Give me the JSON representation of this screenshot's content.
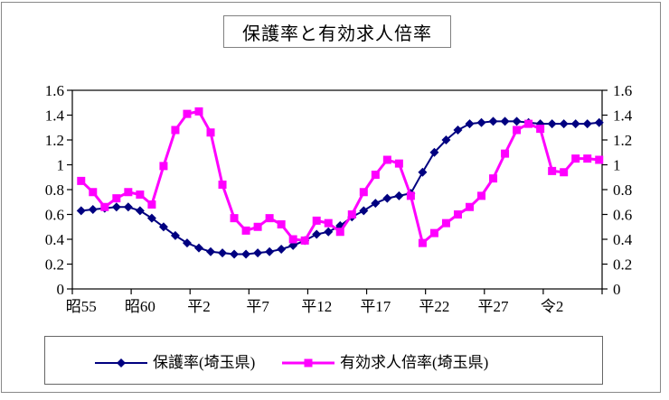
{
  "title": "保護率と有効求人倍率",
  "frame_color": "#888888",
  "axis_color": "#000000",
  "background": "#ffffff",
  "chart_data": {
    "type": "line",
    "title": "保護率と有効求人倍率",
    "x_tick_labels": [
      "昭55",
      "昭60",
      "平2",
      "平7",
      "平12",
      "平17",
      "平22",
      "平27",
      "令2"
    ],
    "x_label_interval": 5,
    "y_tick_labels": [
      "0",
      "0.2",
      "0.4",
      "0.6",
      "0.8",
      "1",
      "1.2",
      "1.4",
      "1.6"
    ],
    "ylim": [
      0,
      1.6
    ],
    "grid": false,
    "dual_y_axis": true,
    "legend_position": "bottom",
    "series": [
      {
        "name": "保護率(埼玉県)",
        "color": "#000080",
        "marker": "diamond",
        "line_width": 2,
        "values": [
          0.63,
          0.64,
          0.65,
          0.66,
          0.66,
          0.63,
          0.57,
          0.5,
          0.43,
          0.37,
          0.33,
          0.3,
          0.29,
          0.28,
          0.28,
          0.29,
          0.3,
          0.32,
          0.35,
          0.39,
          0.44,
          0.46,
          0.51,
          0.58,
          0.63,
          0.69,
          0.73,
          0.75,
          0.77,
          0.94,
          1.1,
          1.2,
          1.28,
          1.33,
          1.34,
          1.35,
          1.35,
          1.35,
          1.34,
          1.33,
          1.33,
          1.33,
          1.33,
          1.33,
          1.34
        ]
      },
      {
        "name": "有効求人倍率(埼玉県)",
        "color": "#FF00FF",
        "marker": "square",
        "line_width": 3,
        "values": [
          0.87,
          0.78,
          0.66,
          0.73,
          0.78,
          0.76,
          0.68,
          0.99,
          1.28,
          1.41,
          1.43,
          1.26,
          0.84,
          0.57,
          0.47,
          0.5,
          0.57,
          0.52,
          0.4,
          0.39,
          0.55,
          0.53,
          0.46,
          0.6,
          0.78,
          0.92,
          1.04,
          1.01,
          0.75,
          0.37,
          0.45,
          0.53,
          0.6,
          0.66,
          0.75,
          0.89,
          1.09,
          1.28,
          1.33,
          1.29,
          0.95,
          0.94,
          1.05,
          1.05,
          1.04
        ]
      }
    ]
  },
  "legend": {
    "items": [
      {
        "label": "保護率(埼玉県)"
      },
      {
        "label": "有効求人倍率(埼玉県)"
      }
    ]
  }
}
